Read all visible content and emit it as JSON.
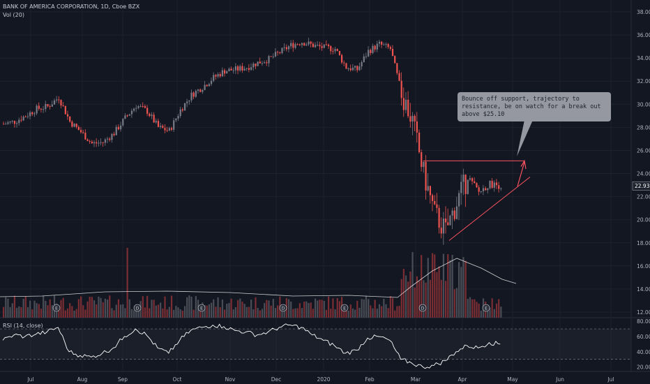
{
  "header": {
    "symbol_line": "BANK OF AMERICA CORPORATION, 1D, Cboe BZX",
    "volume_label": "Vol (20)"
  },
  "rsi_label": "RSI (14, close)",
  "annotation": {
    "text": "Bounce off support, trajectory to resistance, be on watch for a break out above $25.10"
  },
  "colors": {
    "background": "#131722",
    "up": "#787b86",
    "down": "#ef5350",
    "trendline": "#f7525f",
    "vol_ma": "#ffffff",
    "rsi": "#ffffff"
  },
  "chart_data": [
    {
      "type": "candlestick",
      "title": "BANK OF AMERICA CORPORATION, 1D, Cboe BZX",
      "x_ticks": [
        "Jul",
        "Aug",
        "Sep",
        "Oct",
        "Nov",
        "Dec",
        "2020",
        "Feb",
        "Mar",
        "Apr",
        "May",
        "Jun",
        "Jul"
      ],
      "y_ticks": [
        "12.00",
        "14.00",
        "16.00",
        "18.00",
        "20.00",
        "22.00",
        "24.00",
        "26.00",
        "28.00",
        "30.00",
        "32.00",
        "34.00",
        "36.00",
        "38.00"
      ],
      "ylim": [
        12,
        38.6
      ],
      "last_price": "22.93",
      "close_by_week": [
        {
          "x": "Jun 21",
          "y": 28.3
        },
        {
          "x": "Jun 28",
          "y": 28.5
        },
        {
          "x": "Jul 05",
          "y": 29.0
        },
        {
          "x": "Jul 12",
          "y": 29.6
        },
        {
          "x": "Jul 19",
          "y": 29.8
        },
        {
          "x": "Jul 26",
          "y": 30.6
        },
        {
          "x": "Aug 02",
          "y": 28.5
        },
        {
          "x": "Aug 09",
          "y": 27.6
        },
        {
          "x": "Aug 16",
          "y": 26.6
        },
        {
          "x": "Aug 23",
          "y": 26.7
        },
        {
          "x": "Aug 30",
          "y": 27.5
        },
        {
          "x": "Sep 06",
          "y": 28.8
        },
        {
          "x": "Sep 13",
          "y": 29.9
        },
        {
          "x": "Sep 20",
          "y": 29.4
        },
        {
          "x": "Sep 27",
          "y": 28.0
        },
        {
          "x": "Oct 04",
          "y": 27.7
        },
        {
          "x": "Oct 11",
          "y": 29.5
        },
        {
          "x": "Oct 18",
          "y": 30.8
        },
        {
          "x": "Oct 25",
          "y": 31.5
        },
        {
          "x": "Nov 01",
          "y": 32.3
        },
        {
          "x": "Nov 08",
          "y": 32.9
        },
        {
          "x": "Nov 15",
          "y": 33.0
        },
        {
          "x": "Nov 22",
          "y": 33.2
        },
        {
          "x": "Nov 29",
          "y": 33.6
        },
        {
          "x": "Dec 06",
          "y": 33.9
        },
        {
          "x": "Dec 13",
          "y": 34.5
        },
        {
          "x": "Dec 20",
          "y": 35.1
        },
        {
          "x": "Dec 27",
          "y": 35.4
        },
        {
          "x": "Jan 03",
          "y": 35.1
        },
        {
          "x": "Jan 10",
          "y": 34.9
        },
        {
          "x": "Jan 17",
          "y": 34.8
        },
        {
          "x": "Jan 24",
          "y": 33.2
        },
        {
          "x": "Jan 31",
          "y": 33.0
        },
        {
          "x": "Feb 07",
          "y": 34.6
        },
        {
          "x": "Feb 14",
          "y": 35.2
        },
        {
          "x": "Feb 21",
          "y": 34.8
        },
        {
          "x": "Feb 28",
          "y": 31.0
        },
        {
          "x": "Mar 06",
          "y": 28.5
        },
        {
          "x": "Mar 13",
          "y": 24.0
        },
        {
          "x": "Mar 20",
          "y": 20.5
        },
        {
          "x": "Mar 27",
          "y": 19.0
        },
        {
          "x": "Apr 03",
          "y": 21.5
        },
        {
          "x": "Apr 10",
          "y": 23.7
        },
        {
          "x": "Apr 17",
          "y": 22.4
        },
        {
          "x": "Apr 24",
          "y": 23.1
        },
        {
          "x": "May 01",
          "y": 22.93
        }
      ],
      "resistance": 25.1,
      "support_line": [
        {
          "x": "Mar 23",
          "y": 18.2
        },
        {
          "x": "May 08",
          "y": 23.7
        }
      ]
    },
    {
      "type": "bar",
      "title": "Vol (20)",
      "note": "volume bars with 20-period moving average"
    },
    {
      "type": "line",
      "title": "RSI (14, close)",
      "y_ticks": [
        "20.00",
        "40.00",
        "60.00",
        "80.00"
      ],
      "ylim": [
        15,
        82
      ],
      "bands": [
        30,
        70
      ],
      "values_by_week": [
        {
          "x": "Jun 21",
          "y": 55
        },
        {
          "x": "Jun 28",
          "y": 62
        },
        {
          "x": "Jul 05",
          "y": 60
        },
        {
          "x": "Jul 12",
          "y": 63
        },
        {
          "x": "Jul 19",
          "y": 66
        },
        {
          "x": "Jul 26",
          "y": 72
        },
        {
          "x": "Aug 02",
          "y": 40
        },
        {
          "x": "Aug 09",
          "y": 35
        },
        {
          "x": "Aug 16",
          "y": 33
        },
        {
          "x": "Aug 23",
          "y": 38
        },
        {
          "x": "Aug 30",
          "y": 45
        },
        {
          "x": "Sep 06",
          "y": 60
        },
        {
          "x": "Sep 13",
          "y": 70
        },
        {
          "x": "Sep 20",
          "y": 62
        },
        {
          "x": "Sep 27",
          "y": 45
        },
        {
          "x": "Oct 04",
          "y": 38
        },
        {
          "x": "Oct 11",
          "y": 55
        },
        {
          "x": "Oct 18",
          "y": 68
        },
        {
          "x": "Oct 25",
          "y": 72
        },
        {
          "x": "Nov 01",
          "y": 75
        },
        {
          "x": "Nov 08",
          "y": 73
        },
        {
          "x": "Nov 15",
          "y": 68
        },
        {
          "x": "Nov 22",
          "y": 66
        },
        {
          "x": "Nov 29",
          "y": 62
        },
        {
          "x": "Dec 06",
          "y": 66
        },
        {
          "x": "Dec 13",
          "y": 72
        },
        {
          "x": "Dec 20",
          "y": 75
        },
        {
          "x": "Dec 27",
          "y": 72
        },
        {
          "x": "Jan 03",
          "y": 62
        },
        {
          "x": "Jan 10",
          "y": 55
        },
        {
          "x": "Jan 17",
          "y": 48
        },
        {
          "x": "Jan 24",
          "y": 38
        },
        {
          "x": "Jan 31",
          "y": 42
        },
        {
          "x": "Feb 07",
          "y": 58
        },
        {
          "x": "Feb 14",
          "y": 60
        },
        {
          "x": "Feb 21",
          "y": 55
        },
        {
          "x": "Feb 28",
          "y": 30
        },
        {
          "x": "Mar 06",
          "y": 25
        },
        {
          "x": "Mar 13",
          "y": 20
        },
        {
          "x": "Mar 20",
          "y": 22
        },
        {
          "x": "Mar 27",
          "y": 28
        },
        {
          "x": "Apr 03",
          "y": 40
        },
        {
          "x": "Apr 10",
          "y": 48
        },
        {
          "x": "Apr 17",
          "y": 45
        },
        {
          "x": "Apr 24",
          "y": 52
        },
        {
          "x": "May 01",
          "y": 50
        }
      ]
    }
  ]
}
